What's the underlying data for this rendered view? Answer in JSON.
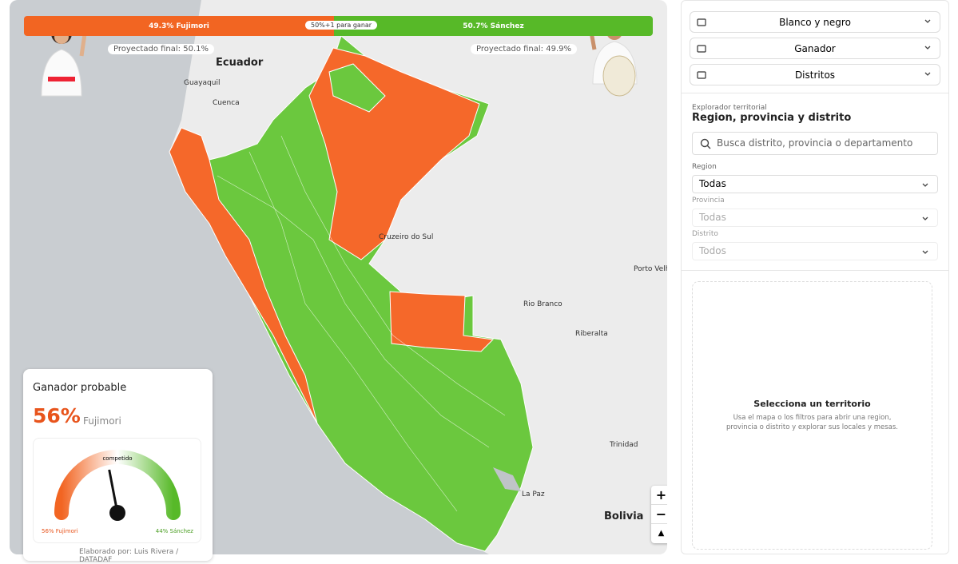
{
  "vote_bar": {
    "segments": [
      {
        "value": 49.3,
        "label": "49.3% Fujimori",
        "color": "#f26522"
      },
      {
        "value": 50.7,
        "label": "50.7% Sánchez",
        "color": "#57b928"
      }
    ],
    "threshold": "50%+1 para ganar",
    "projections": [
      "Proyectado final: 50.1%",
      "Proyectado final: 49.9%"
    ]
  },
  "map_labels": [
    "Ecuador",
    "Guayaquil",
    "Cuenca",
    "Cruzeiro do Sul",
    "Porto Velho",
    "Rio Branco",
    "Riberalta",
    "Trinidad",
    "La Paz",
    "Bolivia"
  ],
  "zoom": [
    "+",
    "−"
  ],
  "probable_winner": {
    "title": "Ganador probable",
    "value": 56,
    "value_label": "56%",
    "name": "Fujimori",
    "gauge_label": "competido",
    "left_label": "56% Fujimori",
    "right_label": "44% Sánchez",
    "credit": "Elaborado por: Luis Rivera / DATADAF"
  },
  "controls": [
    "Blanco y negro",
    "Ganador",
    "Distritos"
  ],
  "explorer": {
    "kicker": "Explorador territorial",
    "title": "Region, provincia y distrito",
    "search_placeholder": "Busca distrito, provincia o departamento",
    "filters": [
      {
        "label": "Region",
        "value": "Todas"
      },
      {
        "label": "Provincia",
        "value": "Todas"
      },
      {
        "label": "Distrito",
        "value": "Todos"
      }
    ],
    "empty_title": "Selecciona un territorio",
    "empty_text": [
      "Usa el mapa o los filtros para abrir una region,",
      "provincia o distrito y explorar sus locales y mesas."
    ]
  }
}
